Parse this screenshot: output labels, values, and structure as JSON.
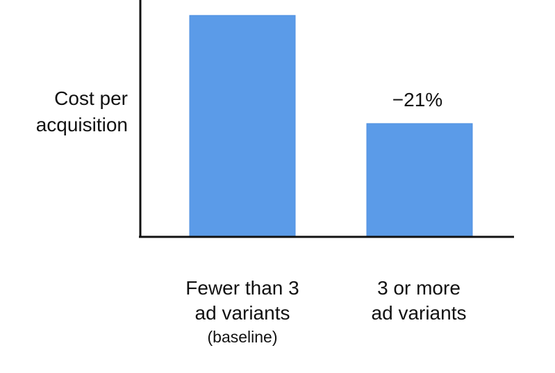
{
  "chart_data": {
    "type": "bar",
    "title": "",
    "ylabel": "Cost per\nacquisition",
    "xlabel": "",
    "categories": [
      {
        "label": "Fewer than 3\nad variants",
        "sublabel": "(baseline)"
      },
      {
        "label": "3 or more\nad variants",
        "sublabel": ""
      }
    ],
    "values": [
      100,
      79
    ],
    "ylim": [
      57,
      103
    ],
    "annotations": [
      "",
      "−21%"
    ],
    "colors": {
      "bar": "#5b9be8",
      "bar_edge": "#4f8fe0",
      "axis": "#111111"
    },
    "grid": false,
    "legend": "none"
  }
}
